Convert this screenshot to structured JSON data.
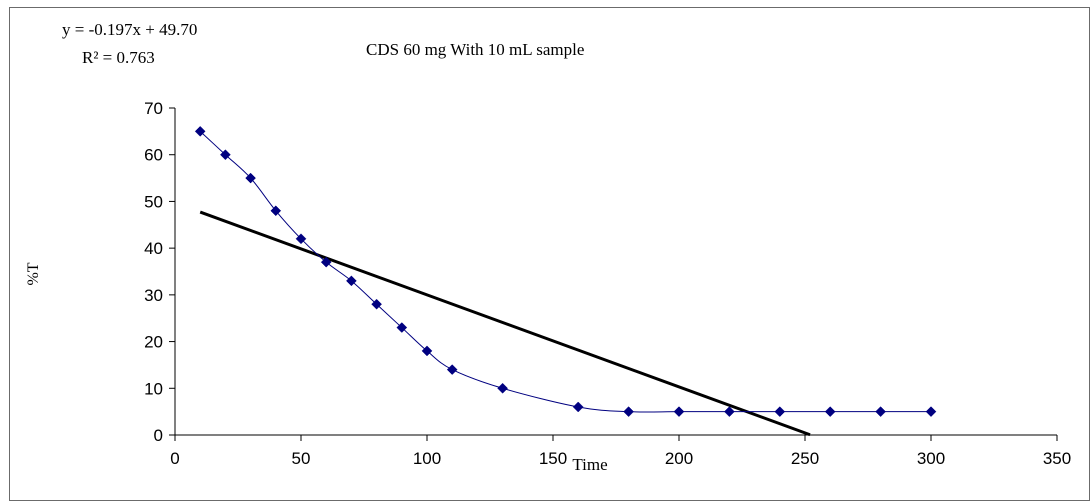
{
  "chart_data": {
    "type": "scatter",
    "title": "CDS 60 mg With 10 mL sample",
    "xlabel": "Time",
    "ylabel": "%T",
    "xlim": [
      0,
      350
    ],
    "ylim": [
      0,
      70
    ],
    "x_ticks": [
      "0",
      "50",
      "100",
      "150",
      "200",
      "250",
      "300",
      "350"
    ],
    "y_ticks": [
      "0",
      "10",
      "20",
      "30",
      "40",
      "50",
      "60",
      "70"
    ],
    "grid": false,
    "legend": "none",
    "series": [
      {
        "color": "#000080",
        "marker": "diamond",
        "line": "smooth",
        "x": [
          10,
          20,
          30,
          40,
          50,
          60,
          70,
          80,
          90,
          100,
          110,
          130,
          160,
          180,
          200,
          220,
          240,
          260,
          280,
          300
        ],
        "y": [
          65,
          60,
          55,
          48,
          42,
          37,
          33,
          28,
          23,
          18,
          14,
          10,
          6,
          5,
          5,
          5,
          5,
          5,
          5,
          5
        ]
      }
    ],
    "trendline": {
      "type": "linear",
      "color": "#000000",
      "slope": -0.197,
      "intercept": 49.7,
      "x_range": [
        10,
        252
      ],
      "equation": "y = -0.197x + 49.70",
      "r2": "R² = 0.763"
    }
  }
}
